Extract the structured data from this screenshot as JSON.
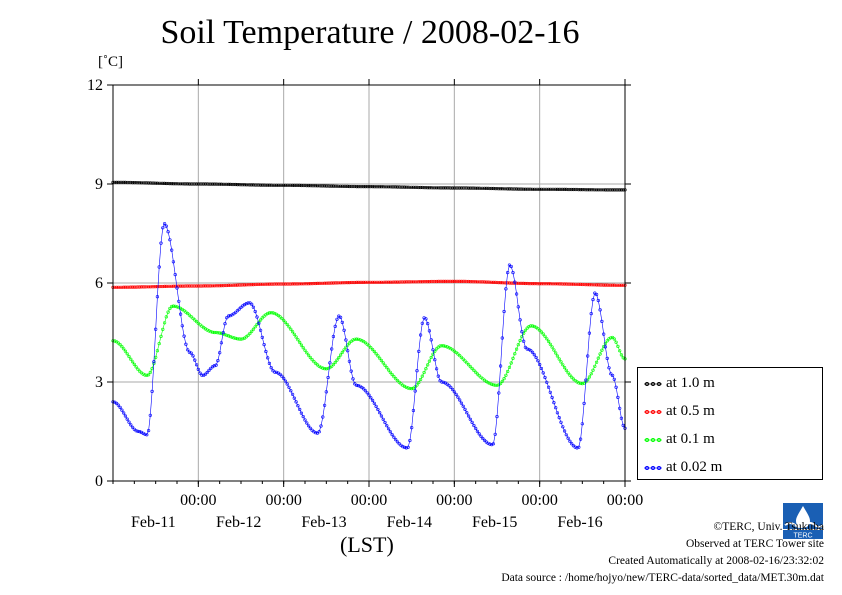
{
  "title": "Soil Temperature / 2008-02-16",
  "unit_label": "[˚C]",
  "x_unit_label": "(LST)",
  "credits": {
    "copyright": "©TERC, Univ. Tsukuba",
    "observed": "Observed at TERC Tower site",
    "created": "Created Automatically at 2008-02-16/23:32:02",
    "source": "Data source : /home/hojyo/new/TERC-data/sorted_data/MET.30m.dat"
  },
  "logo_icon": "terc-logo-icon",
  "chart_data": {
    "type": "line",
    "title": "Soil Temperature / 2008-02-16",
    "ylabel": "[˚C]",
    "xlabel": "(LST)",
    "ylim": [
      0,
      12
    ],
    "xlim_days": [
      0,
      6
    ],
    "y_ticks": [
      "0",
      "3",
      "6",
      "9",
      "12"
    ],
    "x_ticks": [
      {
        "day": 1,
        "time": "00:00",
        "date": "Feb-11"
      },
      {
        "day": 2,
        "time": "00:00",
        "date": "Feb-12"
      },
      {
        "day": 3,
        "time": "00:00",
        "date": "Feb-13"
      },
      {
        "day": 4,
        "time": "00:00",
        "date": "Feb-14"
      },
      {
        "day": 5,
        "time": "00:00",
        "date": "Feb-15"
      },
      {
        "day": 6,
        "time": "00:00",
        "date": "Feb-16"
      }
    ],
    "grid": true,
    "legend_position": "right-bottom",
    "series": [
      {
        "name": "at 1.0 m",
        "color": "#000000",
        "points": [
          [
            0,
            9.05
          ],
          [
            1,
            9.0
          ],
          [
            2,
            8.96
          ],
          [
            3,
            8.92
          ],
          [
            4,
            8.88
          ],
          [
            5,
            8.84
          ],
          [
            6,
            8.82
          ]
        ]
      },
      {
        "name": "at 0.5 m",
        "color": "#ff0000",
        "points": [
          [
            0,
            5.87
          ],
          [
            1,
            5.91
          ],
          [
            2,
            5.97
          ],
          [
            3,
            6.02
          ],
          [
            4,
            6.05
          ],
          [
            5,
            5.98
          ],
          [
            6,
            5.93
          ]
        ]
      },
      {
        "name": "at 0.1 m",
        "color": "#00ff00",
        "points": [
          [
            0,
            4.25
          ],
          [
            0.4,
            3.2
          ],
          [
            0.7,
            5.3
          ],
          [
            1.2,
            4.5
          ],
          [
            1.5,
            4.3
          ],
          [
            1.85,
            5.1
          ],
          [
            2.5,
            3.4
          ],
          [
            2.85,
            4.3
          ],
          [
            3.5,
            2.8
          ],
          [
            3.85,
            4.1
          ],
          [
            4.5,
            2.9
          ],
          [
            4.9,
            4.7
          ],
          [
            5.5,
            2.95
          ],
          [
            5.85,
            4.35
          ],
          [
            6,
            3.7
          ]
        ]
      },
      {
        "name": "at 0.02 m",
        "color": "#0000ff",
        "points": [
          [
            0,
            2.4
          ],
          [
            0.3,
            1.5
          ],
          [
            0.4,
            1.4
          ],
          [
            0.6,
            7.8
          ],
          [
            0.9,
            3.9
          ],
          [
            1.05,
            3.2
          ],
          [
            1.2,
            3.5
          ],
          [
            1.35,
            5.0
          ],
          [
            1.6,
            5.4
          ],
          [
            1.9,
            3.3
          ],
          [
            2.4,
            1.45
          ],
          [
            2.65,
            5.0
          ],
          [
            2.85,
            2.9
          ],
          [
            3.45,
            1.0
          ],
          [
            3.65,
            4.95
          ],
          [
            3.85,
            3.0
          ],
          [
            4.45,
            1.1
          ],
          [
            4.65,
            6.55
          ],
          [
            4.85,
            4.0
          ],
          [
            5.45,
            1.0
          ],
          [
            5.65,
            5.7
          ],
          [
            5.85,
            3.2
          ],
          [
            6,
            1.6
          ]
        ]
      }
    ]
  }
}
